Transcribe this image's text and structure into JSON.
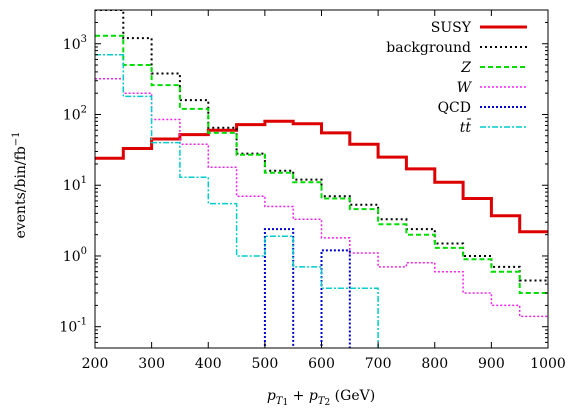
{
  "chart_data": {
    "type": "line",
    "step": true,
    "xlabel": "p_{T1} + p_{T2} (GeV)",
    "ylabel": "events/bin/fb^{-1}",
    "xlim": [
      200,
      1000
    ],
    "ylim": [
      0.05,
      3000
    ],
    "yscale": "log",
    "grid": false,
    "legend_position": "top-right",
    "x_ticks": [
      200,
      300,
      400,
      500,
      600,
      700,
      800,
      900,
      1000
    ],
    "y_ticks": [
      {
        "value": 0.1,
        "base": "10",
        "exp": "-1"
      },
      {
        "value": 1,
        "base": "10",
        "exp": "0"
      },
      {
        "value": 10,
        "base": "10",
        "exp": "1"
      },
      {
        "value": 100,
        "base": "10",
        "exp": "2"
      },
      {
        "value": 1000,
        "base": "10",
        "exp": "3"
      }
    ],
    "bin_edges": [
      200,
      250,
      300,
      350,
      400,
      450,
      500,
      550,
      600,
      650,
      700,
      750,
      800,
      850,
      900,
      950,
      1000
    ],
    "series": [
      {
        "name": "SUSY",
        "color": "#dd0000",
        "dash": "",
        "width": 3,
        "values": [
          24,
          33,
          45,
          52,
          60,
          72,
          80,
          74,
          55,
          38,
          25,
          17,
          11,
          6.5,
          3.7,
          2.2
        ]
      },
      {
        "name": "background",
        "color": "#000000",
        "dash": "2,3",
        "width": 2,
        "values": [
          3000,
          1200,
          380,
          160,
          65,
          28,
          16,
          12,
          7,
          5.3,
          3.3,
          2.4,
          1.5,
          1.0,
          0.7,
          0.45
        ]
      },
      {
        "name": "Z",
        "color": "#00dd00",
        "dash": "5,3",
        "width": 2,
        "values": [
          1300,
          500,
          260,
          120,
          55,
          27,
          15,
          11,
          6.5,
          4.6,
          2.8,
          2.0,
          1.3,
          0.9,
          0.6,
          0.3
        ]
      },
      {
        "name": "W",
        "color": "#ee22ee",
        "dash": "2,2",
        "width": 1.5,
        "values": [
          320,
          200,
          85,
          38,
          18,
          7,
          5,
          3.3,
          1.8,
          1.1,
          0.7,
          0.8,
          0.6,
          0.3,
          0.2,
          0.14
        ]
      },
      {
        "name": "QCD",
        "color": "#0000cc",
        "dash": "2,2",
        "width": 2,
        "values": [
          null,
          null,
          null,
          null,
          null,
          null,
          2.4,
          null,
          1.2,
          null,
          null,
          null,
          null,
          null,
          null,
          null
        ]
      },
      {
        "name": "tt̄",
        "color": "#00cccc",
        "dash": "6,2,2,2",
        "width": 1.5,
        "values": [
          700,
          180,
          40,
          13,
          5.5,
          1.0,
          1.9,
          0.7,
          0.35,
          0.35,
          null,
          null,
          null,
          null,
          null,
          null
        ]
      }
    ],
    "legend": [
      "SUSY",
      "background",
      "Z",
      "W",
      "QCD",
      "tt̄"
    ]
  }
}
